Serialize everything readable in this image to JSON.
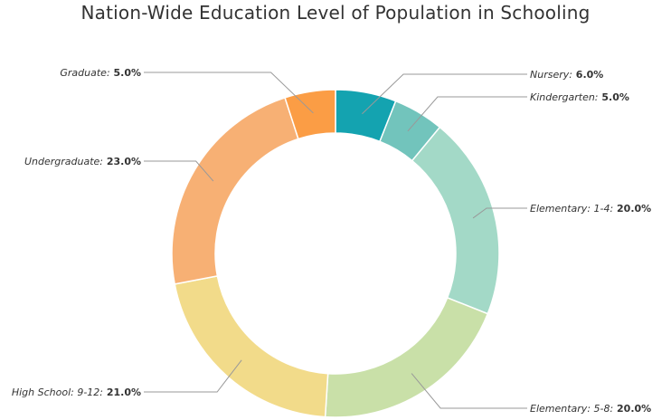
{
  "chart_data": {
    "type": "pie",
    "donut": true,
    "title": "Nation-Wide Education Level of Population in Schooling",
    "slices": [
      {
        "label": "Nursery",
        "value": 6.0,
        "value_label": "6.0%",
        "color": "#14a3b0"
      },
      {
        "label": "Kindergarten",
        "value": 5.0,
        "value_label": "5.0%",
        "color": "#72c4bc"
      },
      {
        "label": "Elementary: 1-4",
        "value": 20.0,
        "value_label": "20.0%",
        "color": "#a3d9c7"
      },
      {
        "label": "Elementary: 5-8",
        "value": 20.0,
        "value_label": "20.0%",
        "color": "#c9e0a8"
      },
      {
        "label": "High School: 9-12",
        "value": 21.0,
        "value_label": "21.0%",
        "color": "#f2db8a"
      },
      {
        "label": "Undergraduate",
        "value": 23.0,
        "value_label": "23.0%",
        "color": "#f7b074"
      },
      {
        "label": "Graduate",
        "value": 5.0,
        "value_label": "5.0%",
        "color": "#fb9d45"
      }
    ]
  }
}
